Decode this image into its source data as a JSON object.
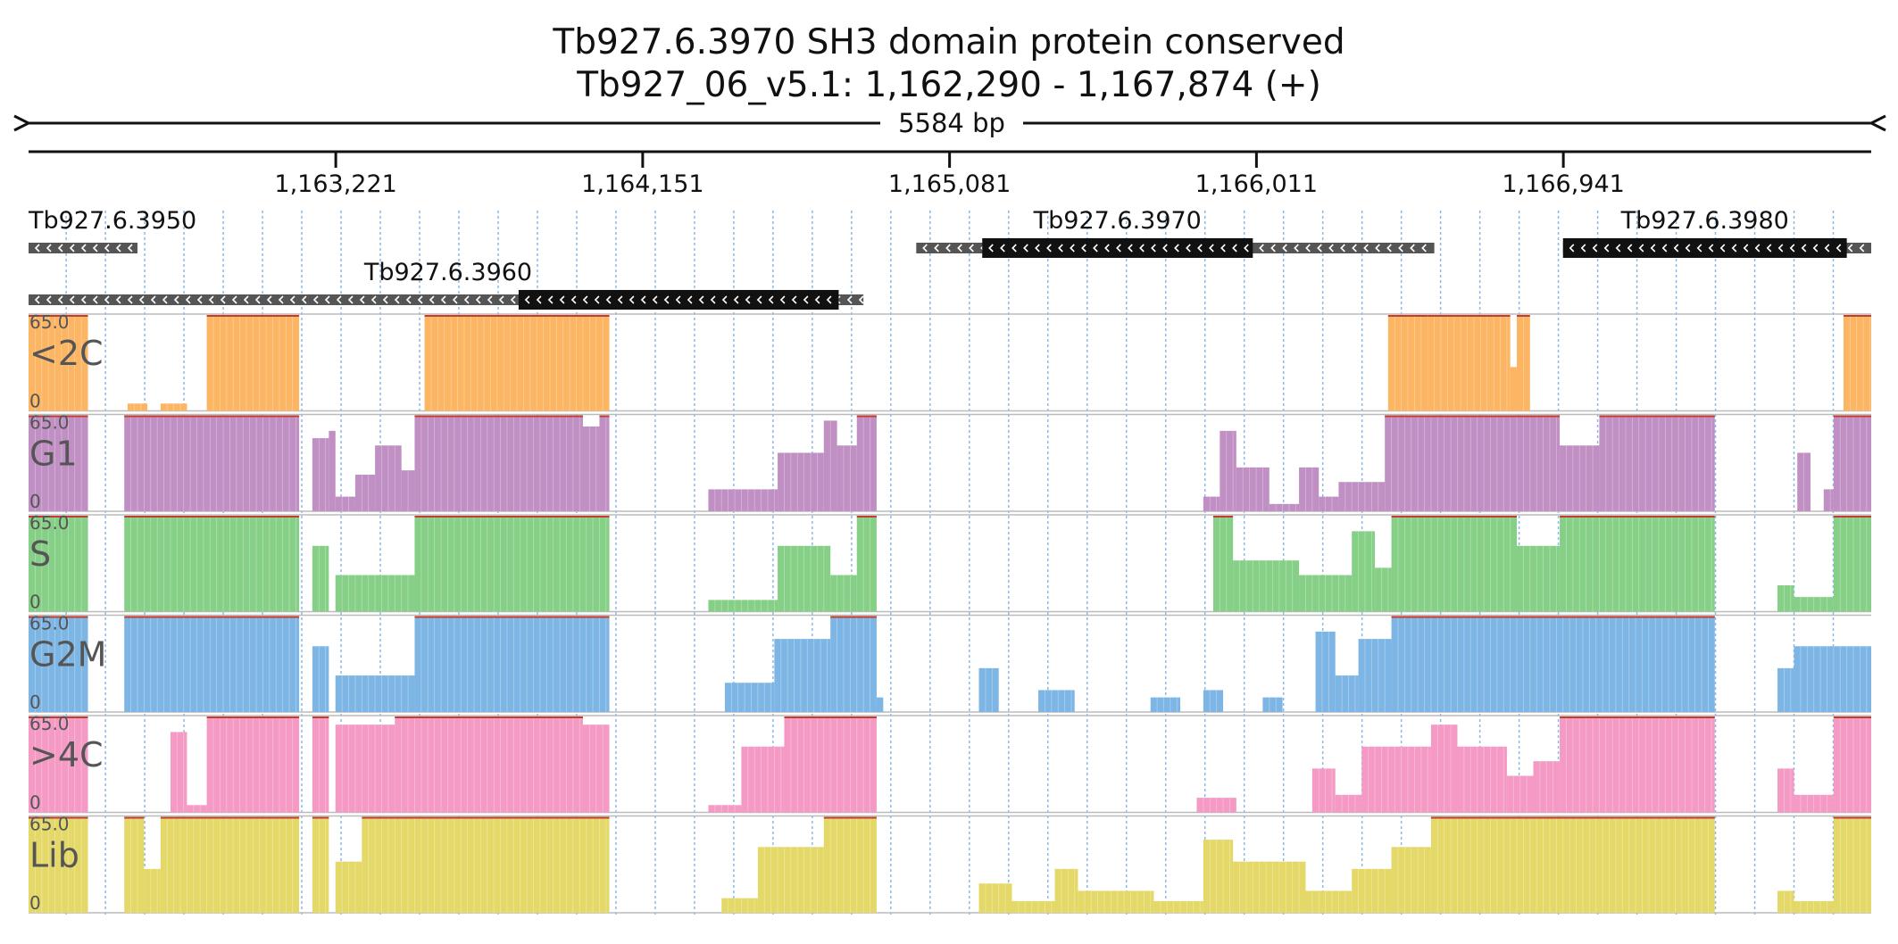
{
  "chart_data": {
    "type": "area",
    "title": "Tb927.6.3970  SH3 domain protein  conserved",
    "subtitle": "Tb927_06_v5.1: 1,162,290 - 1,167,874 (+)",
    "span_label": "5584 bp",
    "region": {
      "start": 1162290,
      "end": 1167874
    },
    "x_ticks": [
      {
        "value": 1163221,
        "label": "1,163,221"
      },
      {
        "value": 1164151,
        "label": "1,164,151"
      },
      {
        "value": 1165081,
        "label": "1,165,081"
      },
      {
        "value": 1166011,
        "label": "1,166,011"
      },
      {
        "value": 1166941,
        "label": "1,166,941"
      }
    ],
    "genes": [
      {
        "name": "Tb927.6.3950",
        "start": 1162290,
        "end": 1162620,
        "cds_start": null,
        "cds_end": null,
        "row": 0
      },
      {
        "name": "Tb927.6.3970",
        "start": 1164980,
        "end": 1166550,
        "cds_start": 1165180,
        "cds_end": 1166000,
        "row": 0
      },
      {
        "name": "Tb927.6.3980",
        "start": 1166940,
        "end": 1167874,
        "cds_start": 1166940,
        "cds_end": 1167800,
        "row": 0
      },
      {
        "name": "Tb927.6.3960",
        "start": 1162290,
        "end": 1164820,
        "cds_start": 1163775,
        "cds_end": 1164745,
        "row": 1
      }
    ],
    "ylim": [
      0,
      65
    ],
    "y_max_label": "65.0",
    "y_min_label": "0",
    "bin_bp": 20,
    "series": [
      {
        "name": "<2C",
        "color": "#fbb563",
        "segments": [
          [
            1162290,
            1162470,
            65
          ],
          [
            1162590,
            1162650,
            5
          ],
          [
            1162690,
            1162770,
            5
          ],
          [
            1162830,
            1163110,
            65
          ],
          [
            1163490,
            1164050,
            65
          ],
          [
            1166410,
            1166530,
            65
          ],
          [
            1166530,
            1166780,
            65
          ],
          [
            1166780,
            1166800,
            30
          ],
          [
            1166800,
            1166840,
            65
          ],
          [
            1167790,
            1167874,
            65
          ]
        ]
      },
      {
        "name": "G1",
        "color": "#c08fc4",
        "segments": [
          [
            1162290,
            1162470,
            65
          ],
          [
            1162580,
            1163110,
            65
          ],
          [
            1163150,
            1163200,
            50
          ],
          [
            1163200,
            1163220,
            55
          ],
          [
            1163220,
            1163280,
            10
          ],
          [
            1163280,
            1163340,
            25
          ],
          [
            1163340,
            1163420,
            45
          ],
          [
            1163420,
            1163460,
            28
          ],
          [
            1163460,
            1163970,
            65
          ],
          [
            1163970,
            1164020,
            58
          ],
          [
            1164020,
            1164050,
            65
          ],
          [
            1164350,
            1164560,
            15
          ],
          [
            1164560,
            1164700,
            40
          ],
          [
            1164700,
            1164740,
            62
          ],
          [
            1164740,
            1164800,
            45
          ],
          [
            1164800,
            1164860,
            65
          ],
          [
            1165850,
            1165900,
            10
          ],
          [
            1165900,
            1165950,
            55
          ],
          [
            1165950,
            1166050,
            30
          ],
          [
            1166050,
            1166140,
            5
          ],
          [
            1166140,
            1166200,
            30
          ],
          [
            1166200,
            1166260,
            10
          ],
          [
            1166260,
            1166400,
            20
          ],
          [
            1166400,
            1166930,
            65
          ],
          [
            1166930,
            1167050,
            45
          ],
          [
            1167050,
            1167400,
            65
          ],
          [
            1167650,
            1167690,
            40
          ],
          [
            1167730,
            1167760,
            15
          ],
          [
            1167760,
            1167874,
            65
          ]
        ]
      },
      {
        "name": "S",
        "color": "#86cf86",
        "segments": [
          [
            1162290,
            1162470,
            65
          ],
          [
            1162580,
            1163110,
            65
          ],
          [
            1163150,
            1163200,
            45
          ],
          [
            1163220,
            1163460,
            25
          ],
          [
            1163460,
            1164050,
            65
          ],
          [
            1164350,
            1164560,
            8
          ],
          [
            1164560,
            1164720,
            45
          ],
          [
            1164720,
            1164800,
            25
          ],
          [
            1164800,
            1164860,
            65
          ],
          [
            1165880,
            1165940,
            65
          ],
          [
            1165940,
            1166140,
            35
          ],
          [
            1166140,
            1166300,
            25
          ],
          [
            1166300,
            1166370,
            55
          ],
          [
            1166370,
            1166420,
            30
          ],
          [
            1166420,
            1166800,
            65
          ],
          [
            1166800,
            1166930,
            45
          ],
          [
            1166930,
            1167400,
            65
          ],
          [
            1167590,
            1167640,
            18
          ],
          [
            1167640,
            1167760,
            10
          ],
          [
            1167760,
            1167874,
            65
          ]
        ]
      },
      {
        "name": "G2M",
        "color": "#7db6e5",
        "segments": [
          [
            1162290,
            1162470,
            65
          ],
          [
            1162580,
            1163110,
            65
          ],
          [
            1163150,
            1163200,
            45
          ],
          [
            1163220,
            1163460,
            25
          ],
          [
            1163460,
            1164050,
            65
          ],
          [
            1164400,
            1164550,
            20
          ],
          [
            1164550,
            1164720,
            50
          ],
          [
            1164720,
            1164860,
            65
          ],
          [
            1164860,
            1164880,
            10
          ],
          [
            1165170,
            1165230,
            30
          ],
          [
            1165350,
            1165460,
            15
          ],
          [
            1165690,
            1165780,
            10
          ],
          [
            1165850,
            1165910,
            15
          ],
          [
            1166030,
            1166090,
            10
          ],
          [
            1166190,
            1166250,
            55
          ],
          [
            1166250,
            1166320,
            25
          ],
          [
            1166320,
            1166420,
            50
          ],
          [
            1166420,
            1167400,
            65
          ],
          [
            1167590,
            1167640,
            30
          ],
          [
            1167640,
            1167874,
            45
          ]
        ]
      },
      {
        "name": ">4C",
        "color": "#f49ac4",
        "segments": [
          [
            1162290,
            1162470,
            65
          ],
          [
            1162720,
            1162770,
            55
          ],
          [
            1162770,
            1162830,
            5
          ],
          [
            1162830,
            1163110,
            65
          ],
          [
            1163150,
            1163200,
            65
          ],
          [
            1163220,
            1163400,
            60
          ],
          [
            1163400,
            1163970,
            65
          ],
          [
            1163970,
            1164050,
            60
          ],
          [
            1164350,
            1164450,
            5
          ],
          [
            1164450,
            1164580,
            45
          ],
          [
            1164580,
            1164860,
            65
          ],
          [
            1165830,
            1165950,
            10
          ],
          [
            1166180,
            1166250,
            30
          ],
          [
            1166250,
            1166330,
            12
          ],
          [
            1166330,
            1166540,
            45
          ],
          [
            1166540,
            1166620,
            60
          ],
          [
            1166620,
            1166770,
            45
          ],
          [
            1166770,
            1166850,
            25
          ],
          [
            1166850,
            1166930,
            35
          ],
          [
            1166930,
            1167400,
            65
          ],
          [
            1167590,
            1167640,
            30
          ],
          [
            1167640,
            1167760,
            12
          ],
          [
            1167760,
            1167874,
            65
          ]
        ]
      },
      {
        "name": "Lib",
        "color": "#e4d968",
        "segments": [
          [
            1162290,
            1162470,
            65
          ],
          [
            1162580,
            1162640,
            65
          ],
          [
            1162640,
            1162690,
            30
          ],
          [
            1162690,
            1163110,
            65
          ],
          [
            1163150,
            1163200,
            65
          ],
          [
            1163220,
            1163300,
            35
          ],
          [
            1163300,
            1164050,
            65
          ],
          [
            1164390,
            1164500,
            10
          ],
          [
            1164500,
            1164700,
            45
          ],
          [
            1164700,
            1164860,
            65
          ],
          [
            1165170,
            1165270,
            20
          ],
          [
            1165270,
            1165400,
            8
          ],
          [
            1165400,
            1165470,
            30
          ],
          [
            1165470,
            1165700,
            15
          ],
          [
            1165700,
            1165850,
            8
          ],
          [
            1165850,
            1165940,
            50
          ],
          [
            1165940,
            1166160,
            35
          ],
          [
            1166160,
            1166300,
            15
          ],
          [
            1166300,
            1166420,
            30
          ],
          [
            1166420,
            1166540,
            45
          ],
          [
            1166540,
            1167400,
            65
          ],
          [
            1167590,
            1167640,
            15
          ],
          [
            1167640,
            1167760,
            8
          ],
          [
            1167760,
            1167874,
            65
          ]
        ]
      }
    ]
  }
}
